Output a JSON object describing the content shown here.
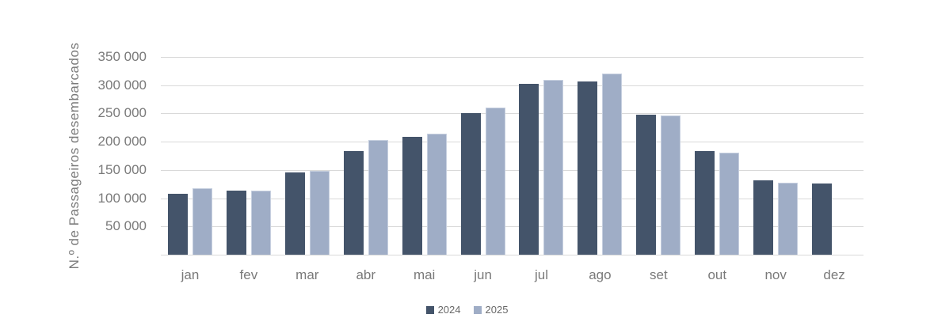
{
  "chart_data": {
    "type": "bar",
    "title": "",
    "xlabel": "",
    "ylabel": "N.º de Passageiros desembarcados",
    "categories": [
      "jan",
      "fev",
      "mar",
      "abr",
      "mai",
      "jun",
      "jul",
      "ago",
      "set",
      "out",
      "nov",
      "dez"
    ],
    "series": [
      {
        "name": "2024",
        "color": "#44546A",
        "values": [
          108000,
          114000,
          145000,
          183000,
          209000,
          251000,
          303000,
          306000,
          248000,
          183000,
          131000,
          126000
        ]
      },
      {
        "name": "2025",
        "color": "#9FADC6",
        "values": [
          117000,
          113000,
          149000,
          203000,
          214000,
          261000,
          309000,
          320000,
          247000,
          181000,
          127000,
          null
        ]
      }
    ],
    "ylim": [
      0,
      350000
    ],
    "ytick_step": 50000,
    "ytick_labels": [
      "50 000",
      "100 000",
      "150 000",
      "200 000",
      "250 000",
      "300 000",
      "350 000"
    ],
    "grid": true,
    "gridline_color": "#d9d9d9",
    "legend_position": "bottom-center",
    "legend_items": [
      {
        "label": "2024",
        "color": "#44546A"
      },
      {
        "label": "2025",
        "color": "#9FADC6"
      }
    ]
  }
}
